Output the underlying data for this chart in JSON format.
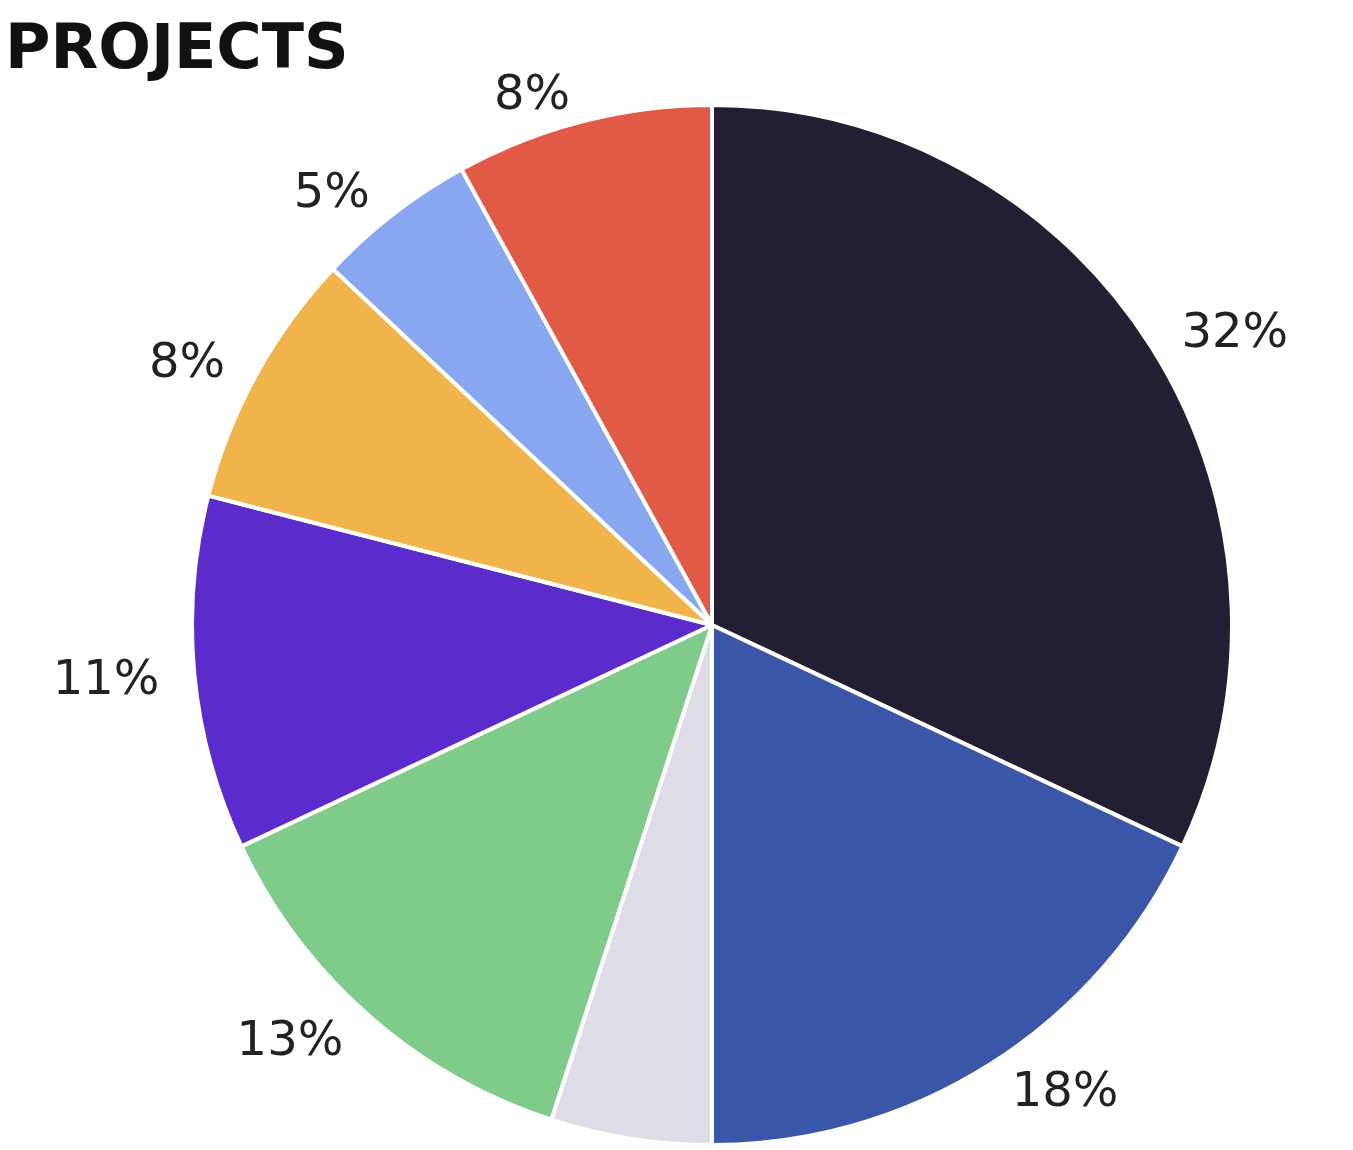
{
  "chart_data": {
    "type": "pie",
    "title": "PROJECTS",
    "categories": [
      null,
      null,
      null,
      null,
      null,
      null,
      null,
      null
    ],
    "values": [
      32,
      18,
      5,
      13,
      11,
      8,
      5,
      8
    ],
    "value_labels": [
      "32%",
      "18%",
      null,
      "13%",
      "11%",
      "8%",
      "5%",
      "8%"
    ],
    "colors": [
      "#221f33",
      "#3a56a8",
      "#dddde6",
      "#7ecb8a",
      "#5b2bcc",
      "#f0b44a",
      "#87a8f0",
      "#e05a45"
    ]
  }
}
